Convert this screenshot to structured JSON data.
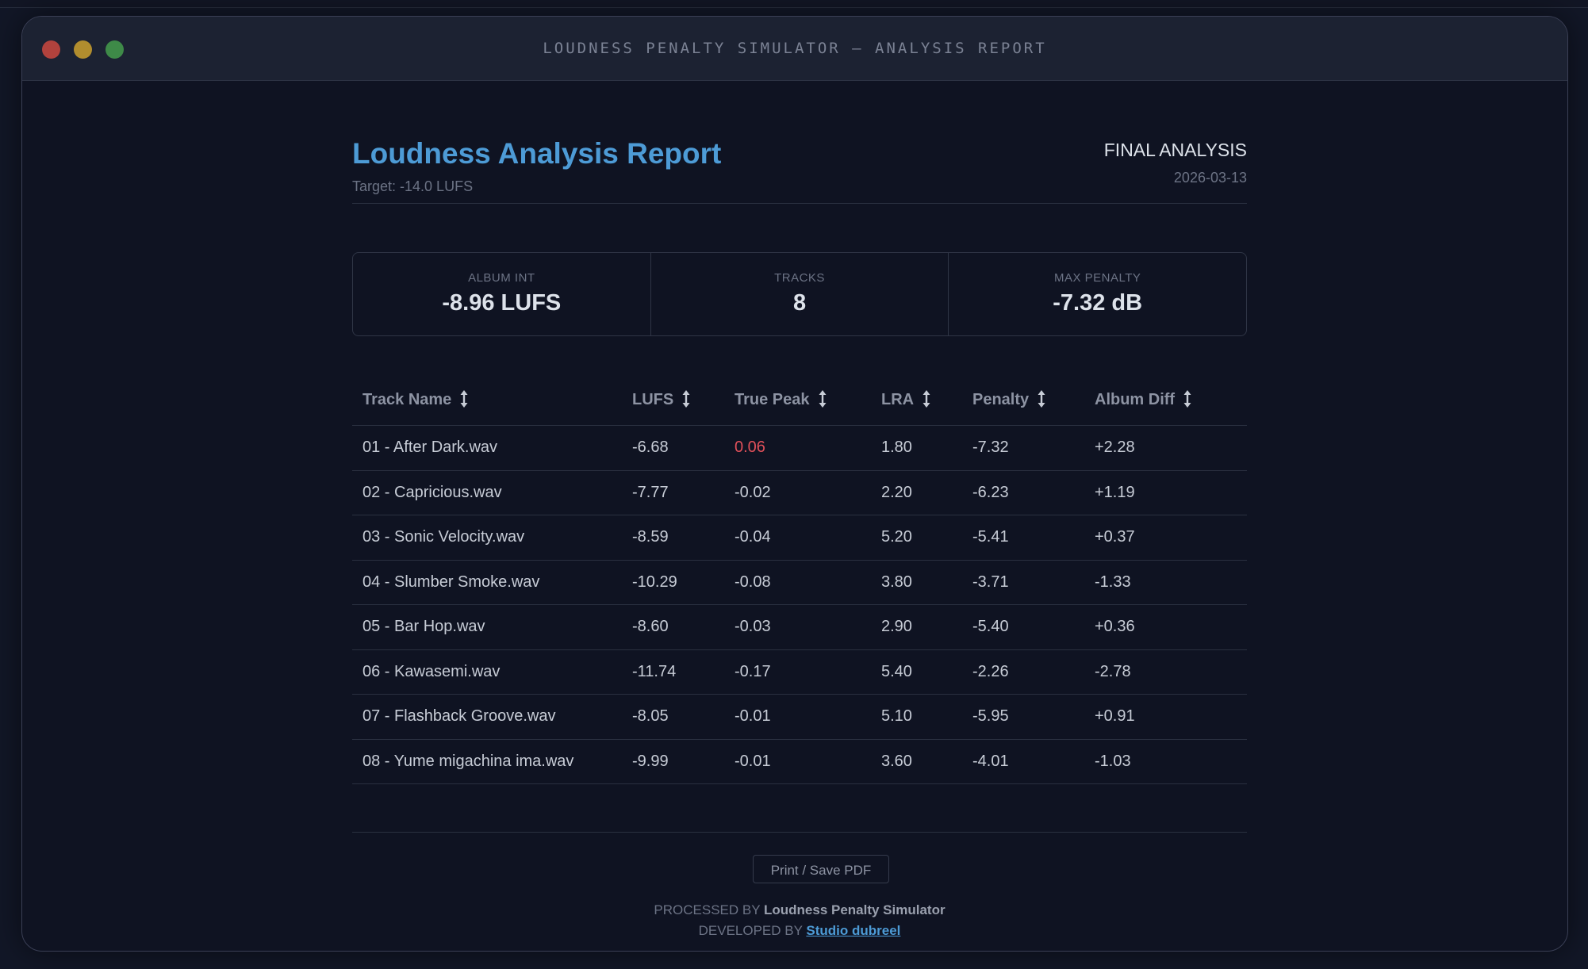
{
  "window": {
    "title": "LOUDNESS PENALTY SIMULATOR — ANALYSIS REPORT"
  },
  "report": {
    "title": "Loudness Analysis Report",
    "target": "Target: -14.0 LUFS",
    "status": "FINAL ANALYSIS",
    "date": "2026-03-13"
  },
  "summary": [
    {
      "label": "ALBUM INT",
      "value": "-8.96 LUFS"
    },
    {
      "label": "TRACKS",
      "value": "8"
    },
    {
      "label": "MAX PENALTY",
      "value": "-7.32 dB"
    }
  ],
  "table": {
    "columns": [
      "Track Name",
      "LUFS",
      "True Peak",
      "LRA",
      "Penalty",
      "Album Diff"
    ],
    "rows": [
      [
        "01 - After Dark.wav",
        "-6.68",
        "0.06",
        "1.80",
        "-7.32",
        "+2.28"
      ],
      [
        "02 - Capricious.wav",
        "-7.77",
        "-0.02",
        "2.20",
        "-6.23",
        "+1.19"
      ],
      [
        "03 - Sonic Velocity.wav",
        "-8.59",
        "-0.04",
        "5.20",
        "-5.41",
        "+0.37"
      ],
      [
        "04 - Slumber Smoke.wav",
        "-10.29",
        "-0.08",
        "3.80",
        "-3.71",
        "-1.33"
      ],
      [
        "05 - Bar Hop.wav",
        "-8.60",
        "-0.03",
        "2.90",
        "-5.40",
        "+0.36"
      ],
      [
        "06 - Kawasemi.wav",
        "-11.74",
        "-0.17",
        "5.40",
        "-2.26",
        "-2.78"
      ],
      [
        "07 - Flashback Groove.wav",
        "-8.05",
        "-0.01",
        "5.10",
        "-5.95",
        "+0.91"
      ],
      [
        "08 - Yume migachina ima.wav",
        "-9.99",
        "-0.01",
        "3.60",
        "-4.01",
        "-1.03"
      ]
    ]
  },
  "footer": {
    "print_label": "Print / Save PDF",
    "processed_prefix": "PROCESSED BY",
    "processed_name": "Loudness Penalty Simulator",
    "developed_prefix": "DEVELOPED BY",
    "developed_name": "Studio dubreel"
  },
  "colors": {
    "accent": "#4d9bd6",
    "peak_warning": "#e0505a",
    "background": "#0f1322"
  },
  "icons": {
    "sort": "sort-updown-icon"
  }
}
